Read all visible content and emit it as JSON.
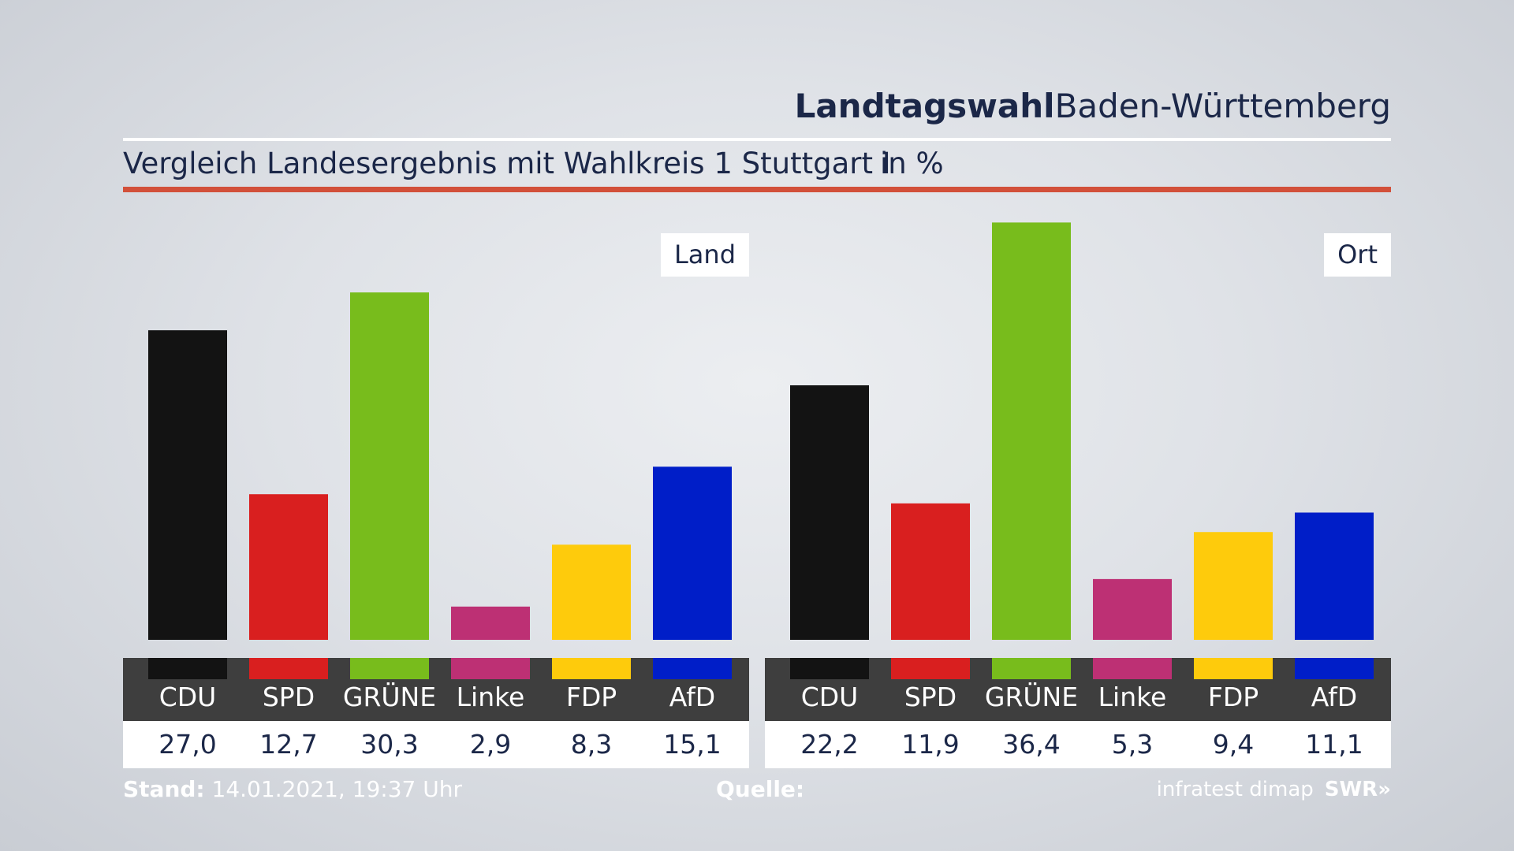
{
  "header": {
    "title_bold": "Landtagswahl",
    "title_regular": "Baden-Württemberg",
    "subtitle": "Vergleich Landesergebnis mit Wahlkreis 1 Stuttgart I",
    "unit": "in %"
  },
  "colors": {
    "accent_rule": "#d2503a",
    "CDU": "#131313",
    "SPD": "#d91f1f",
    "GRÜNE": "#78bc1c",
    "Linke": "#bd3074",
    "FDP": "#fecb0c",
    "AfD": "#001ec8"
  },
  "chart_data": [
    {
      "type": "bar",
      "title": "Land",
      "categories": [
        "CDU",
        "SPD",
        "GRÜNE",
        "Linke",
        "FDP",
        "AfD"
      ],
      "values": [
        27.0,
        12.7,
        30.3,
        2.9,
        8.3,
        15.1
      ],
      "value_labels": [
        "27,0",
        "12,7",
        "30,3",
        "2,9",
        "8,3",
        "15,1"
      ],
      "ylim": [
        0,
        37
      ],
      "grid": false
    },
    {
      "type": "bar",
      "title": "Ort",
      "categories": [
        "CDU",
        "SPD",
        "GRÜNE",
        "Linke",
        "FDP",
        "AfD"
      ],
      "values": [
        22.2,
        11.9,
        36.4,
        5.3,
        9.4,
        11.1
      ],
      "value_labels": [
        "22,2",
        "11,9",
        "36,4",
        "5,3",
        "9,4",
        "11,1"
      ],
      "ylim": [
        0,
        37
      ],
      "grid": false
    }
  ],
  "footer": {
    "stand_label": "Stand:",
    "stand_value": "14.01.2021, 19:37 Uhr",
    "source_label": "Quelle:",
    "source_value": "infratest dimap",
    "brand": "SWR"
  }
}
